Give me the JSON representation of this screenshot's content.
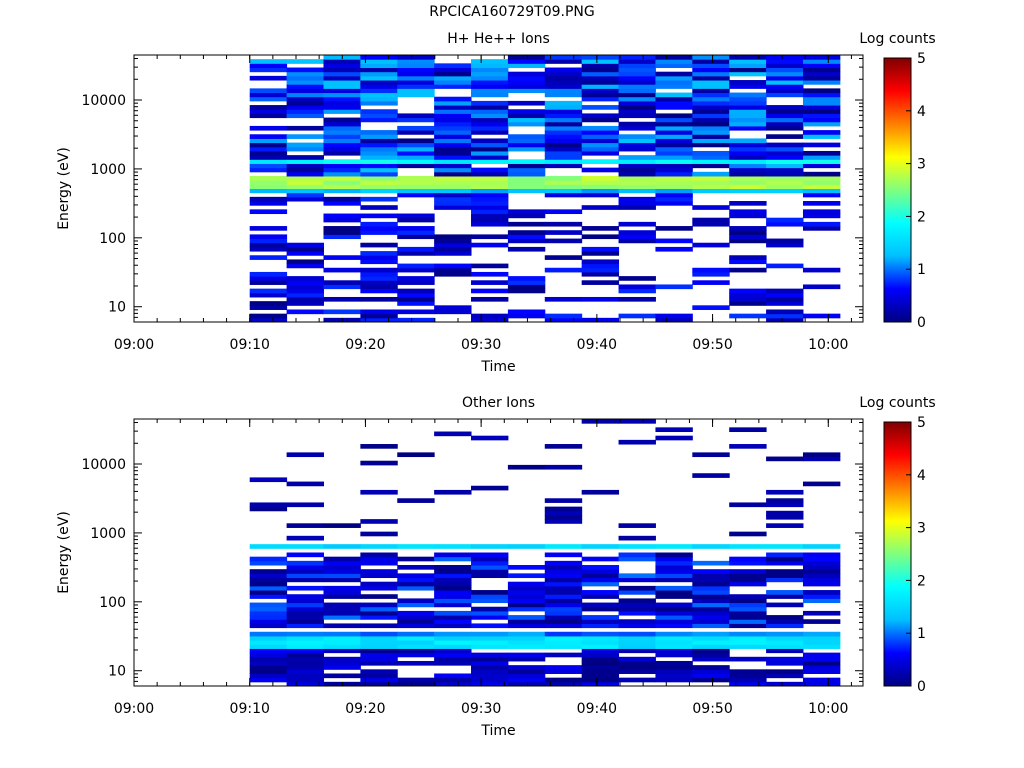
{
  "page": {
    "title": "RPCICA160729T09.PNG"
  },
  "colorscale": {
    "stops": [
      "#000080",
      "#0000ff",
      "#00bfff",
      "#00ffff",
      "#7fff7f",
      "#ffff00",
      "#ff7f00",
      "#ff0000",
      "#800000"
    ],
    "label": "Log counts",
    "ticks": [
      "0",
      "1",
      "2",
      "3",
      "4",
      "5"
    ],
    "range": [
      0,
      5
    ]
  },
  "chart_data": [
    {
      "type": "heatmap",
      "title": "H+ He++ Ions",
      "xlabel": "Time",
      "ylabel": "Energy (eV)",
      "yscale": "log",
      "xlim": [
        "09:00",
        "10:03"
      ],
      "ylim": [
        6,
        45000
      ],
      "xticks": [
        "09:00",
        "09:10",
        "09:20",
        "09:30",
        "09:40",
        "09:50",
        "10:00"
      ],
      "yticks": [
        "10",
        "100",
        "1000",
        "10000"
      ],
      "data_start": "09:10",
      "data_end": "10:01",
      "features": [
        {
          "energy_range": [
            520,
            760
          ],
          "log_counts": 2.7
        },
        {
          "energy_range": [
            1150,
            1350
          ],
          "log_counts": 1.8
        },
        {
          "energy_range": [
            470,
            520
          ],
          "log_counts": 1.3
        }
      ],
      "background": {
        "energy_range": [
          800,
          45000
        ],
        "log_counts_range": [
          0,
          1.3
        ],
        "fill": 0.85
      },
      "low_energy": {
        "energy_range": [
          6,
          800
        ],
        "log_counts_range": [
          0,
          0.8
        ],
        "fill": 0.45
      }
    },
    {
      "type": "heatmap",
      "title": "Other Ions",
      "xlabel": "Time",
      "ylabel": "Energy (eV)",
      "yscale": "log",
      "xlim": [
        "09:00",
        "10:03"
      ],
      "ylim": [
        6,
        45000
      ],
      "xticks": [
        "09:00",
        "09:10",
        "09:20",
        "09:30",
        "09:40",
        "09:50",
        "10:00"
      ],
      "yticks": [
        "10",
        "100",
        "1000",
        "10000"
      ],
      "data_start": "09:10",
      "data_end": "10:01",
      "features": [
        {
          "energy_range": [
            560,
            720
          ],
          "log_counts": 1.5
        },
        {
          "energy_range": [
            22,
            33
          ],
          "log_counts": 1.6
        },
        {
          "energy_range": [
            33,
            38
          ],
          "log_counts": 1.0
        }
      ],
      "background": {
        "energy_range": [
          40,
          500
        ],
        "log_counts_range": [
          0,
          1.0
        ],
        "fill": 0.75
      },
      "low_energy": {
        "energy_range": [
          6,
          20
        ],
        "log_counts_range": [
          0,
          0.6
        ],
        "fill": 0.8
      },
      "sparse": {
        "energy_range": [
          800,
          45000
        ],
        "log_counts_range": [
          0,
          0.3
        ],
        "fill": 0.1
      }
    }
  ]
}
